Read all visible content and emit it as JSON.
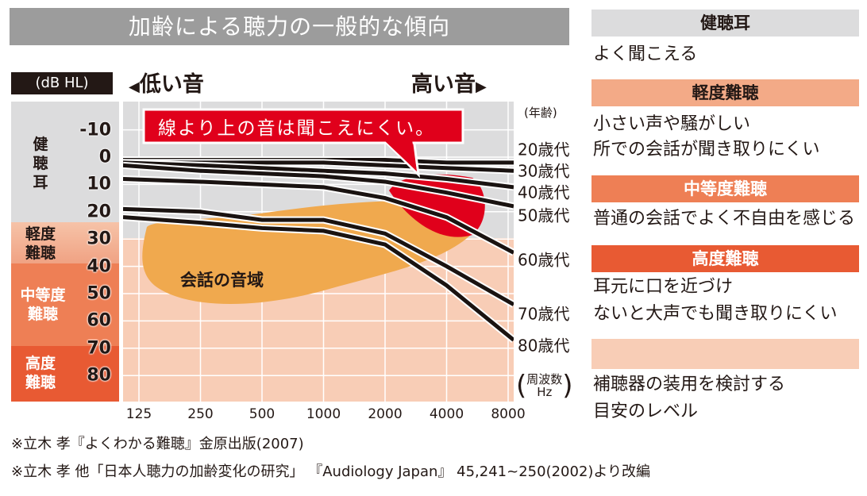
{
  "title": "加齢による聴力の一般的な傾向",
  "unit_label": "(dB HL)",
  "low_label": "低い音",
  "high_label": "高い音",
  "callout": "線より上の音は聞こえにくい。",
  "speech_area_label": "会話の音域",
  "age_header": "(年齢)",
  "freq_label_top": "周波数",
  "freq_label_bottom": "Hz",
  "colors": {
    "normal": "#dcdcdd",
    "mild": "#f3aa87",
    "moderate": "#ee7f55",
    "severe": "#e85a33",
    "plot_pink": "#f8cdb6",
    "speech_orange": "#f0a94e",
    "callout_red": "#e0001b"
  },
  "bands": [
    {
      "name": "健\n聴\n耳",
      "lines": [
        "健",
        "聴",
        "耳"
      ]
    },
    {
      "name": "軽度難聴",
      "lines": [
        "軽度",
        "難聴"
      ]
    },
    {
      "name": "中等度難聴",
      "lines": [
        "中等度",
        "難聴"
      ]
    },
    {
      "name": "高度難聴",
      "lines": [
        "高度",
        "難聴"
      ]
    }
  ],
  "legend": [
    {
      "head": "健聴耳",
      "text": [
        "よく聞こえる"
      ]
    },
    {
      "head": "軽度難聴",
      "text": [
        "小さい声や騒がしい",
        "所での会話が聞き取りにくい"
      ]
    },
    {
      "head": "中等度難聴",
      "text": [
        "普通の会話でよく不自由を感じる"
      ]
    },
    {
      "head": "高度難聴",
      "text": [
        "耳元に口を近づけ",
        "ないと大声でも聞き取りにくい"
      ]
    },
    {
      "head": "",
      "text": [
        "補聴器の装用を検討する",
        "目安のレベル"
      ]
    }
  ],
  "notes": [
    "※立木 孝『よくわかる難聴』金原出版(2007)",
    "※立木 孝 他「日本人聴力の加齢変化の研究」 『Audiology Japan』 45,241~250(2002)より改編"
  ],
  "chart_data": {
    "type": "line",
    "title": "加齢による聴力の一般的な傾向",
    "xlabel": "周波数 Hz",
    "ylabel": "(dB HL)",
    "x": [
      125,
      250,
      500,
      1000,
      2000,
      4000,
      8000
    ],
    "x_tick_labels": [
      "125",
      "250",
      "500",
      "1000",
      "2000",
      "4000",
      "8000"
    ],
    "y_ticks": [
      -10,
      0,
      10,
      20,
      30,
      40,
      50,
      60,
      70,
      80
    ],
    "y_tick_labels": [
      "-10",
      "0",
      "10",
      "20",
      "30",
      "40",
      "50",
      "60",
      "70",
      "80"
    ],
    "ylim": [
      -20,
      90
    ],
    "y_inverted": true,
    "grid": true,
    "series": [
      {
        "name": "20歳代",
        "values": [
          1,
          1,
          1,
          1,
          1,
          2,
          2
        ]
      },
      {
        "name": "30歳代",
        "values": [
          2,
          2,
          2,
          2,
          3,
          4,
          5
        ]
      },
      {
        "name": "40歳代",
        "values": [
          2,
          3,
          4,
          5,
          6,
          8,
          11
        ]
      },
      {
        "name": "50歳代",
        "values": [
          3,
          5,
          6,
          7,
          9,
          13,
          18
        ]
      },
      {
        "name": "60歳代",
        "values": [
          8,
          9,
          10,
          11,
          15,
          22,
          35
        ]
      },
      {
        "name": "70歳代",
        "values": [
          19,
          20,
          23,
          23,
          28,
          40,
          54
        ]
      },
      {
        "name": "80歳代",
        "values": [
          22,
          24,
          26,
          27,
          32,
          47,
          67
        ]
      }
    ]
  }
}
